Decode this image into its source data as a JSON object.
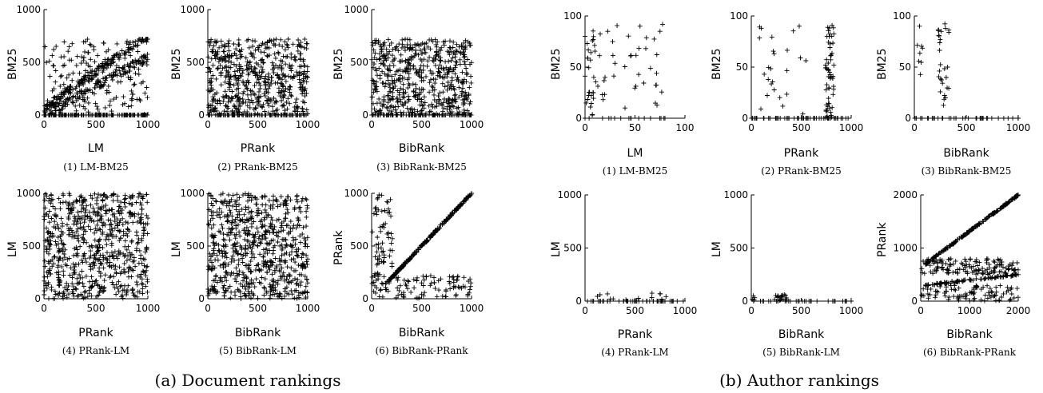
{
  "subfigures": [
    {
      "label": "(a) Document rankings"
    },
    {
      "label": "(b) Author rankings"
    }
  ],
  "chart_data": [
    {
      "id": "doc1",
      "type": "scatter",
      "group": "a",
      "caption": "(1) LM-BM25",
      "xlabel": "LM",
      "ylabel": "BM25",
      "xlim": [
        0,
        1000
      ],
      "ylim": [
        0,
        1000
      ],
      "xticks": [
        0,
        500,
        1000
      ],
      "yticks": [
        0,
        500,
        1000
      ],
      "pattern": "lm_bm25",
      "n": 600,
      "series": [
        {
          "points": [
            [
              0,
              0
            ],
            [
              200,
              250
            ],
            [
              400,
              420
            ],
            [
              600,
              600
            ],
            [
              800,
              700
            ],
            [
              1000,
              720
            ],
            [
              500,
              0
            ],
            [
              950,
              0
            ]
          ]
        }
      ]
    },
    {
      "id": "doc2",
      "type": "scatter",
      "group": "a",
      "caption": "(2) PRank-BM25",
      "xlabel": "PRank",
      "ylabel": "BM25",
      "xlim": [
        0,
        1000
      ],
      "ylim": [
        0,
        1000
      ],
      "xticks": [
        0,
        500,
        1000
      ],
      "yticks": [
        0,
        500,
        1000
      ],
      "pattern": "uniform_bm25",
      "n": 650,
      "series": [
        {
          "points": [
            [
              100,
              600
            ],
            [
              500,
              350
            ],
            [
              900,
              650
            ],
            [
              300,
              0
            ],
            [
              800,
              0
            ]
          ]
        }
      ]
    },
    {
      "id": "doc3",
      "type": "scatter",
      "group": "a",
      "caption": "(3) BibRank-BM25",
      "xlabel": "BibRank",
      "ylabel": "BM25",
      "xlim": [
        0,
        1000
      ],
      "ylim": [
        0,
        1000
      ],
      "xticks": [
        0,
        500,
        1000
      ],
      "yticks": [
        0,
        500,
        1000
      ],
      "pattern": "uniform_bm25",
      "n": 650,
      "series": [
        {
          "points": [
            [
              100,
              600
            ],
            [
              500,
              350
            ],
            [
              900,
              650
            ],
            [
              300,
              0
            ],
            [
              800,
              0
            ]
          ]
        }
      ]
    },
    {
      "id": "doc4",
      "type": "scatter",
      "group": "a",
      "caption": "(4) PRank-LM",
      "xlabel": "PRank",
      "ylabel": "LM",
      "xlim": [
        0,
        1000
      ],
      "ylim": [
        0,
        1000
      ],
      "xticks": [
        0,
        500,
        1000
      ],
      "yticks": [
        0,
        500,
        1000
      ],
      "pattern": "uniform_full",
      "n": 700,
      "series": [
        {
          "points": [
            [
              50,
              950
            ],
            [
              500,
              500
            ],
            [
              950,
              50
            ],
            [
              950,
              950
            ]
          ]
        }
      ]
    },
    {
      "id": "doc5",
      "type": "scatter",
      "group": "a",
      "caption": "(5) BibRank-LM",
      "xlabel": "BibRank",
      "ylabel": "LM",
      "xlim": [
        0,
        1000
      ],
      "ylim": [
        0,
        1000
      ],
      "xticks": [
        0,
        500,
        1000
      ],
      "yticks": [
        0,
        500,
        1000
      ],
      "pattern": "uniform_full",
      "n": 700,
      "series": [
        {
          "points": [
            [
              50,
              950
            ],
            [
              500,
              500
            ],
            [
              950,
              50
            ],
            [
              950,
              950
            ]
          ]
        }
      ]
    },
    {
      "id": "doc6",
      "type": "scatter",
      "group": "a",
      "caption": "(6) BibRank-PRank",
      "xlabel": "BibRank",
      "ylabel": "PRank",
      "xlim": [
        0,
        1000
      ],
      "ylim": [
        0,
        1000
      ],
      "xticks": [
        0,
        500,
        1000
      ],
      "yticks": [
        0,
        500,
        1000
      ],
      "pattern": "doc_bib_prank",
      "n": 400,
      "series": [
        {
          "points": [
            [
              150,
              150
            ],
            [
              500,
              500
            ],
            [
              1000,
              1000
            ],
            [
              50,
              800
            ],
            [
              500,
              150
            ],
            [
              900,
              100
            ]
          ]
        }
      ]
    },
    {
      "id": "auth1",
      "type": "scatter",
      "group": "b",
      "caption": "(1) LM-BM25",
      "xlabel": "LM",
      "ylabel": "BM25",
      "xlim": [
        0,
        100
      ],
      "ylim": [
        0,
        100
      ],
      "xticks": [
        0,
        50,
        100
      ],
      "yticks": [
        0,
        50,
        100
      ],
      "pattern": "auth_lm_bm25",
      "n": 80,
      "series": [
        {
          "points": [
            [
              0,
              80
            ],
            [
              20,
              40
            ],
            [
              55,
              90
            ],
            [
              75,
              85
            ],
            [
              40,
              10
            ],
            [
              80,
              0
            ]
          ]
        }
      ]
    },
    {
      "id": "auth2",
      "type": "scatter",
      "group": "b",
      "caption": "(2) PRank-BM25",
      "xlabel": "PRank",
      "ylabel": "BM25",
      "xlim": [
        0,
        1000
      ],
      "ylim": [
        0,
        100
      ],
      "xticks": [
        0,
        500,
        1000
      ],
      "yticks": [
        0,
        50,
        100
      ],
      "pattern": "auth_prank_bm25",
      "n": 140,
      "series": [
        {
          "points": [
            [
              100,
              88
            ],
            [
              480,
              90
            ],
            [
              780,
              80
            ],
            [
              800,
              40
            ],
            [
              900,
              0
            ],
            [
              500,
              0
            ]
          ]
        }
      ]
    },
    {
      "id": "auth3",
      "type": "scatter",
      "group": "b",
      "caption": "(3) BibRank-BM25",
      "xlabel": "BibRank",
      "ylabel": "BM25",
      "xlim": [
        0,
        1000
      ],
      "ylim": [
        0,
        100
      ],
      "xticks": [
        0,
        500,
        1000
      ],
      "yticks": [
        0,
        50,
        100
      ],
      "pattern": "auth_bib_bm25",
      "n": 70,
      "series": [
        {
          "points": [
            [
              50,
              90
            ],
            [
              300,
              88
            ],
            [
              320,
              50
            ],
            [
              300,
              20
            ],
            [
              600,
              0
            ],
            [
              1000,
              0
            ]
          ]
        }
      ]
    },
    {
      "id": "auth4",
      "type": "scatter",
      "group": "b",
      "caption": "(4) PRank-LM",
      "xlabel": "PRank",
      "ylabel": "LM",
      "xlim": [
        0,
        1000
      ],
      "ylim": [
        0,
        1000
      ],
      "xticks": [
        0,
        500,
        1000
      ],
      "yticks": [
        0,
        500,
        1000
      ],
      "pattern": "auth_prank_lm",
      "n": 60,
      "series": [
        {
          "points": [
            [
              150,
              60
            ],
            [
              500,
              0
            ],
            [
              750,
              70
            ],
            [
              800,
              0
            ]
          ]
        }
      ]
    },
    {
      "id": "auth5",
      "type": "scatter",
      "group": "b",
      "caption": "(5) BibRank-LM",
      "xlabel": "BibRank",
      "ylabel": "LM",
      "xlim": [
        0,
        1000
      ],
      "ylim": [
        0,
        1000
      ],
      "xticks": [
        0,
        500,
        1000
      ],
      "yticks": [
        0,
        500,
        1000
      ],
      "pattern": "auth_bib_lm",
      "n": 50,
      "series": [
        {
          "points": [
            [
              20,
              50
            ],
            [
              300,
              40
            ],
            [
              330,
              60
            ],
            [
              600,
              0
            ],
            [
              1000,
              0
            ]
          ]
        }
      ]
    },
    {
      "id": "auth6",
      "type": "scatter",
      "group": "b",
      "caption": "(6) BibRank-PRank",
      "xlabel": "BibRank",
      "ylabel": "PRank",
      "xlim": [
        0,
        2000
      ],
      "ylim": [
        0,
        2000
      ],
      "xticks": [
        0,
        1000,
        2000
      ],
      "yticks": [
        0,
        1000,
        2000
      ],
      "pattern": "auth_bib_prank",
      "n": 500,
      "series": [
        {
          "points": [
            [
              100,
              700
            ],
            [
              2000,
              2000
            ],
            [
              100,
              300
            ],
            [
              2000,
              500
            ],
            [
              1000,
              650
            ],
            [
              500,
              100
            ],
            [
              1800,
              200
            ]
          ]
        }
      ]
    }
  ]
}
